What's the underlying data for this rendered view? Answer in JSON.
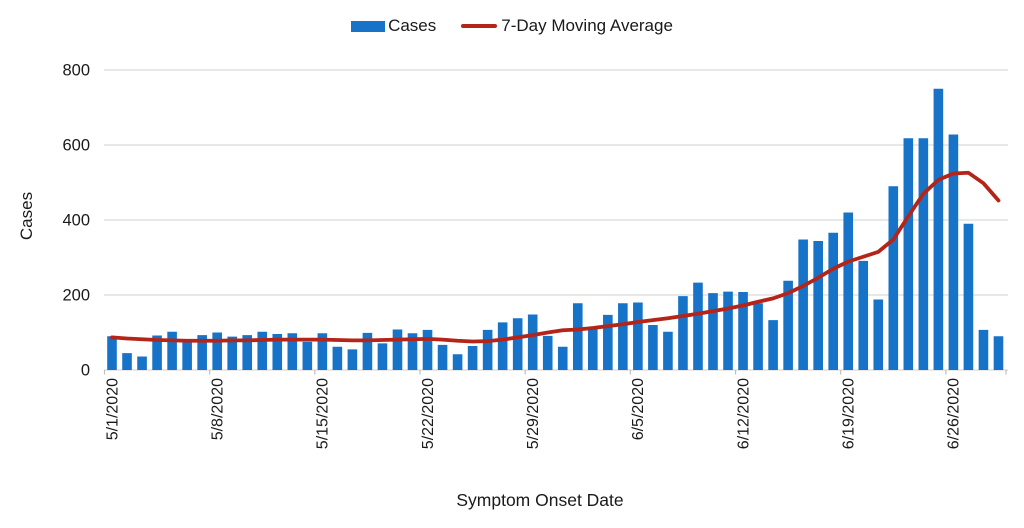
{
  "legend": {
    "cases_label": "Cases",
    "ma_label": "7-Day Moving Average"
  },
  "y_axis": {
    "title": "Cases",
    "ticks": [
      0,
      200,
      400,
      600,
      800
    ]
  },
  "x_axis": {
    "title": "Symptom Onset Date",
    "tick_labels": [
      "5/1/2020",
      "5/8/2020",
      "5/15/2020",
      "5/22/2020",
      "5/29/2020",
      "6/5/2020",
      "6/12/2020",
      "6/19/2020",
      "6/26/2020"
    ],
    "tick_every": 7
  },
  "colors": {
    "bar": "#1673C8",
    "line": "#B42418",
    "gridline": "#D9D9D9",
    "axis_tick": "#BFBFBF",
    "text": "#1A1A1A",
    "background": "#FFFFFF"
  },
  "chart_data": {
    "type": "bar",
    "title": "",
    "xlabel": "Symptom Onset Date",
    "ylabel": "Cases",
    "ylim": [
      0,
      800
    ],
    "yticks": [
      0,
      200,
      400,
      600,
      800
    ],
    "grid": true,
    "legend_position": "top",
    "x": [
      "5/1/2020",
      "5/2/2020",
      "5/3/2020",
      "5/4/2020",
      "5/5/2020",
      "5/6/2020",
      "5/7/2020",
      "5/8/2020",
      "5/9/2020",
      "5/10/2020",
      "5/11/2020",
      "5/12/2020",
      "5/13/2020",
      "5/14/2020",
      "5/15/2020",
      "5/16/2020",
      "5/17/2020",
      "5/18/2020",
      "5/19/2020",
      "5/20/2020",
      "5/21/2020",
      "5/22/2020",
      "5/23/2020",
      "5/24/2020",
      "5/25/2020",
      "5/26/2020",
      "5/27/2020",
      "5/28/2020",
      "5/29/2020",
      "5/30/2020",
      "5/31/2020",
      "6/1/2020",
      "6/2/2020",
      "6/3/2020",
      "6/4/2020",
      "6/5/2020",
      "6/6/2020",
      "6/7/2020",
      "6/8/2020",
      "6/9/2020",
      "6/10/2020",
      "6/11/2020",
      "6/12/2020",
      "6/13/2020",
      "6/14/2020",
      "6/15/2020",
      "6/16/2020",
      "6/17/2020",
      "6/18/2020",
      "6/19/2020",
      "6/20/2020",
      "6/21/2020",
      "6/22/2020",
      "6/23/2020",
      "6/24/2020",
      "6/25/2020",
      "6/26/2020",
      "6/27/2020",
      "6/28/2020",
      "6/29/2020"
    ],
    "series": [
      {
        "name": "Cases",
        "type": "bar",
        "values": [
          90,
          45,
          36,
          92,
          102,
          76,
          93,
          100,
          89,
          93,
          102,
          96,
          98,
          75,
          98,
          62,
          55,
          99,
          71,
          108,
          98,
          107,
          67,
          42,
          64,
          107,
          127,
          138,
          148,
          91,
          62,
          178,
          115,
          147,
          178,
          180,
          120,
          102,
          197,
          233,
          205,
          209,
          208,
          178,
          133,
          238,
          348,
          344,
          366,
          420,
          291,
          188,
          490,
          618,
          618,
          750,
          628,
          390,
          107,
          90
        ]
      },
      {
        "name": "7-Day Moving Average",
        "type": "line",
        "values": [
          87,
          84,
          82,
          80,
          79,
          78,
          78,
          78,
          79,
          79,
          80,
          81,
          81,
          81,
          81,
          80,
          79,
          79,
          80,
          81,
          82,
          83,
          81,
          78,
          76,
          77,
          81,
          87,
          93,
          100,
          106,
          108,
          112,
          117,
          122,
          128,
          133,
          138,
          144,
          150,
          157,
          164,
          172,
          182,
          191,
          205,
          224,
          246,
          270,
          289,
          302,
          315,
          348,
          410,
          470,
          507,
          524,
          526,
          498,
          452
        ]
      }
    ]
  }
}
